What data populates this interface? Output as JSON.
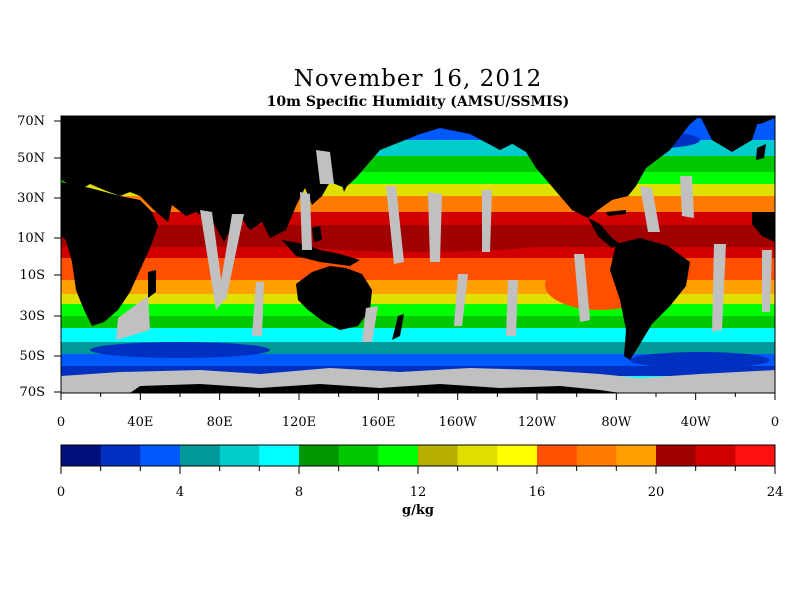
{
  "title": "November 16, 2012",
  "subtitle": "10m Specific Humidity (AMSU/SSMIS)",
  "map": {
    "lat_labels": [
      "70N",
      "50N",
      "30N",
      "10N",
      "10S",
      "30S",
      "50S",
      "70S"
    ],
    "lon_labels": [
      "0",
      "40E",
      "80E",
      "120E",
      "160E",
      "160W",
      "120W",
      "80W",
      "40W",
      "0"
    ],
    "colors": {
      "land": "#000000",
      "missing": "#c0c0c0"
    }
  },
  "colorbar": {
    "unit": "g/kg",
    "tick_labels": [
      "0",
      "4",
      "8",
      "12",
      "16",
      "20",
      "24"
    ],
    "colors": [
      "#00107a",
      "#0030c0",
      "#0058ff",
      "#009898",
      "#00cccc",
      "#00ffff",
      "#009600",
      "#00c800",
      "#00ff00",
      "#b8b000",
      "#e0e000",
      "#ffff00",
      "#ff5000",
      "#ff7c00",
      "#ffa000",
      "#a00000",
      "#d00000",
      "#ff1010"
    ]
  }
}
